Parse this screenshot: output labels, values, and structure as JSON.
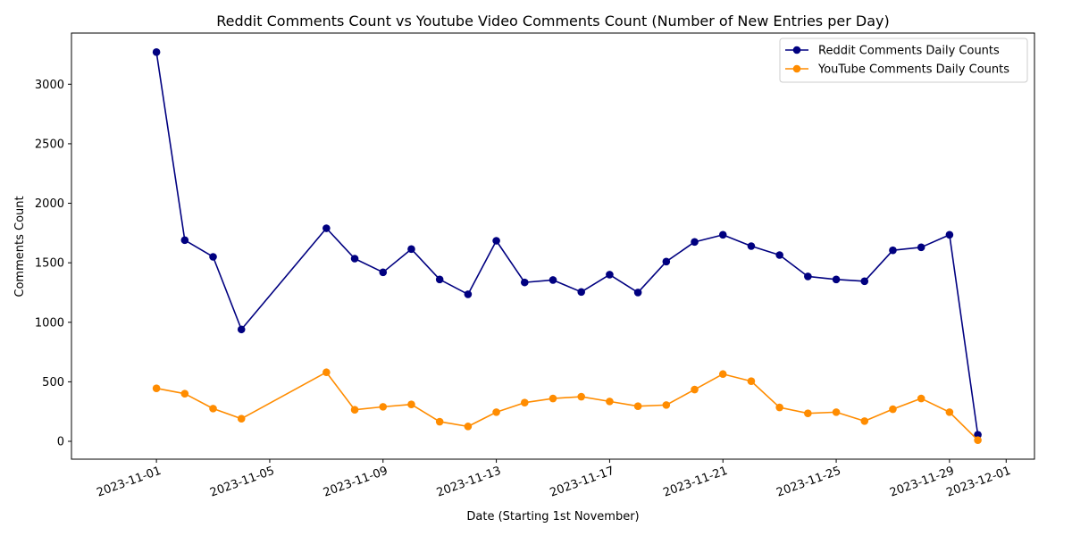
{
  "chart_data": {
    "type": "line",
    "title": "Reddit Comments Count vs Youtube Video Comments Count (Number of New Entries per Day)",
    "xlabel": "Date (Starting 1st November)",
    "ylabel": "Comments Count",
    "xlim": [
      "2023-10-29",
      "2023-12-02"
    ],
    "ylim": [
      -150,
      3430
    ],
    "xticks": [
      "2023-11-01",
      "2023-11-05",
      "2023-11-09",
      "2023-11-13",
      "2023-11-17",
      "2023-11-21",
      "2023-11-25",
      "2023-11-29",
      "2023-12-01"
    ],
    "yticks": [
      0,
      500,
      1000,
      1500,
      2000,
      2500,
      3000
    ],
    "grid": false,
    "legend_position": "top-right",
    "series": [
      {
        "name": "Reddit Comments Daily Counts",
        "color": "#000080",
        "points": [
          [
            "2023-11-01",
            3270
          ],
          [
            "2023-11-02",
            1690
          ],
          [
            "2023-11-03",
            1550
          ],
          [
            "2023-11-04",
            940
          ],
          [
            "2023-11-07",
            1790
          ],
          [
            "2023-11-08",
            1535
          ],
          [
            "2023-11-09",
            1420
          ],
          [
            "2023-11-10",
            1615
          ],
          [
            "2023-11-11",
            1360
          ],
          [
            "2023-11-12",
            1235
          ],
          [
            "2023-11-13",
            1685
          ],
          [
            "2023-11-14",
            1335
          ],
          [
            "2023-11-15",
            1355
          ],
          [
            "2023-11-16",
            1255
          ],
          [
            "2023-11-17",
            1400
          ],
          [
            "2023-11-18",
            1250
          ],
          [
            "2023-11-19",
            1510
          ],
          [
            "2023-11-20",
            1675
          ],
          [
            "2023-11-21",
            1735
          ],
          [
            "2023-11-22",
            1640
          ],
          [
            "2023-11-23",
            1565
          ],
          [
            "2023-11-24",
            1385
          ],
          [
            "2023-11-25",
            1360
          ],
          [
            "2023-11-26",
            1345
          ],
          [
            "2023-11-27",
            1605
          ],
          [
            "2023-11-28",
            1630
          ],
          [
            "2023-11-29",
            1735
          ],
          [
            "2023-11-30",
            55
          ]
        ]
      },
      {
        "name": "YouTube Comments Daily Counts",
        "color": "#ff8c00",
        "points": [
          [
            "2023-11-01",
            445
          ],
          [
            "2023-11-02",
            400
          ],
          [
            "2023-11-03",
            275
          ],
          [
            "2023-11-04",
            190
          ],
          [
            "2023-11-07",
            580
          ],
          [
            "2023-11-08",
            265
          ],
          [
            "2023-11-09",
            290
          ],
          [
            "2023-11-10",
            310
          ],
          [
            "2023-11-11",
            165
          ],
          [
            "2023-11-12",
            125
          ],
          [
            "2023-11-13",
            245
          ],
          [
            "2023-11-14",
            325
          ],
          [
            "2023-11-15",
            360
          ],
          [
            "2023-11-16",
            375
          ],
          [
            "2023-11-17",
            335
          ],
          [
            "2023-11-18",
            295
          ],
          [
            "2023-11-19",
            305
          ],
          [
            "2023-11-20",
            435
          ],
          [
            "2023-11-21",
            565
          ],
          [
            "2023-11-22",
            505
          ],
          [
            "2023-11-23",
            285
          ],
          [
            "2023-11-24",
            235
          ],
          [
            "2023-11-25",
            245
          ],
          [
            "2023-11-26",
            170
          ],
          [
            "2023-11-27",
            270
          ],
          [
            "2023-11-28",
            360
          ],
          [
            "2023-11-29",
            245
          ],
          [
            "2023-11-30",
            10
          ]
        ]
      }
    ]
  }
}
